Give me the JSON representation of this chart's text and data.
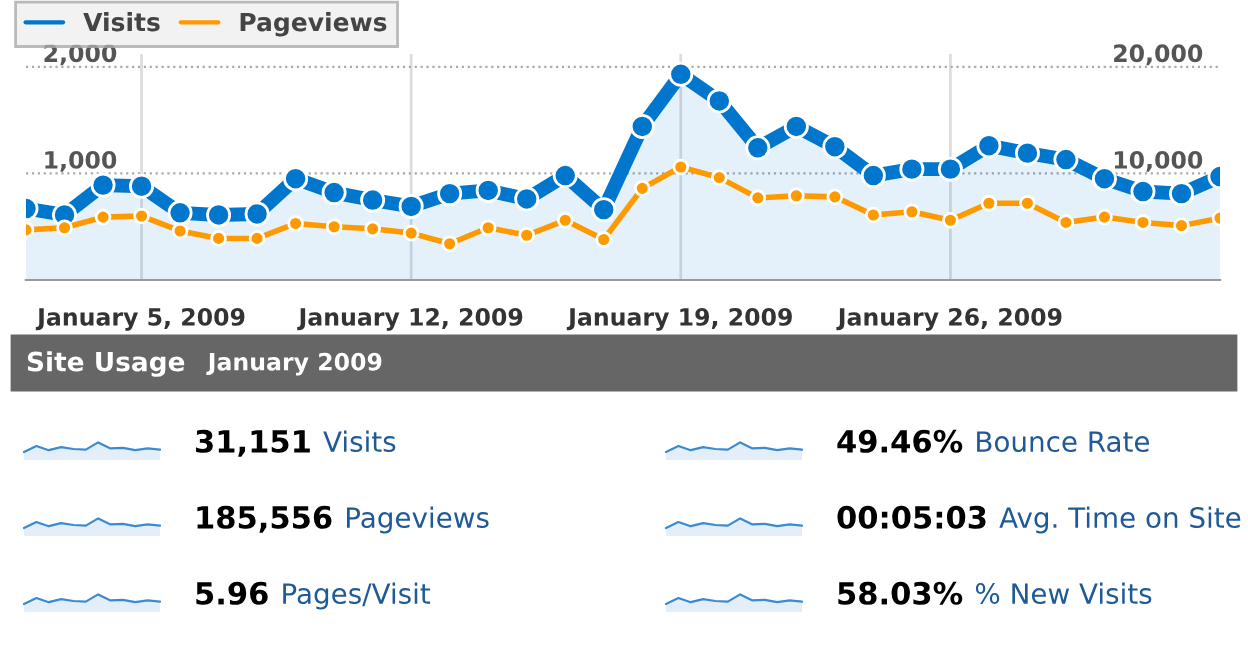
{
  "chart_data": [
    {
      "type": "line",
      "x": [
        "2009-01-02",
        "2009-01-03",
        "2009-01-04",
        "2009-01-05",
        "2009-01-06",
        "2009-01-07",
        "2009-01-08",
        "2009-01-09",
        "2009-01-10",
        "2009-01-11",
        "2009-01-12",
        "2009-01-13",
        "2009-01-14",
        "2009-01-15",
        "2009-01-16",
        "2009-01-17",
        "2009-01-18",
        "2009-01-19",
        "2009-01-20",
        "2009-01-21",
        "2009-01-22",
        "2009-01-23",
        "2009-01-24",
        "2009-01-25",
        "2009-01-26",
        "2009-01-27",
        "2009-01-28",
        "2009-01-29",
        "2009-01-30",
        "2009-01-31",
        "2009-02-01",
        "2009-02-02"
      ],
      "series": [
        {
          "name": "Visits",
          "type": "area",
          "color": "#0077cc",
          "values": [
            670,
            610,
            890,
            880,
            630,
            610,
            620,
            950,
            820,
            750,
            690,
            810,
            840,
            760,
            980,
            660,
            1440,
            1930,
            1680,
            1240,
            1440,
            1250,
            980,
            1040,
            1040,
            1260,
            1190,
            1130,
            950,
            830,
            810,
            970
          ]
        },
        {
          "name": "Pageviews",
          "type": "line",
          "axis": "y2",
          "color": "#ff9900",
          "values": [
            4700,
            4900,
            5900,
            6000,
            4600,
            3900,
            3900,
            5300,
            5000,
            4800,
            4400,
            3400,
            4900,
            4200,
            5600,
            3800,
            8600,
            10600,
            9600,
            7700,
            7900,
            7800,
            6100,
            6400,
            5600,
            7200,
            7200,
            5400,
            5900,
            5400,
            5100,
            5800
          ]
        }
      ],
      "xlim": [
        "2009-01-02",
        "2009-02-02"
      ],
      "xticks": [
        {
          "value": "2009-01-05",
          "label": "January 5, 2009"
        },
        {
          "value": "2009-01-12",
          "label": "January 12, 2009"
        },
        {
          "value": "2009-01-19",
          "label": "January 19, 2009"
        },
        {
          "value": "2009-01-26",
          "label": "January 26, 2009"
        }
      ],
      "ylim": [
        0,
        2120
      ],
      "yticks": [
        {
          "value": 1000,
          "label": "1,000"
        },
        {
          "value": 2000,
          "label": "2,000"
        }
      ],
      "y2lim": [
        0,
        21200
      ],
      "y2ticks": [
        {
          "value": 10000,
          "label": "10,000"
        },
        {
          "value": 20000,
          "label": "20,000"
        }
      ],
      "grid": true,
      "legend": "top left",
      "marker": "circle"
    },
    {
      "type": "other",
      "title": "Site Usage",
      "subtitle": "January 2009",
      "categories": [
        "Visits",
        "Pageviews",
        "Pages/Visit",
        "Bounce Rate",
        "Avg. Time on Site",
        "% New Visits"
      ],
      "value_labels": [
        "31,151",
        "185,556",
        "5.96",
        "49.46%",
        "00:05:03",
        "58.03%"
      ]
    }
  ]
}
